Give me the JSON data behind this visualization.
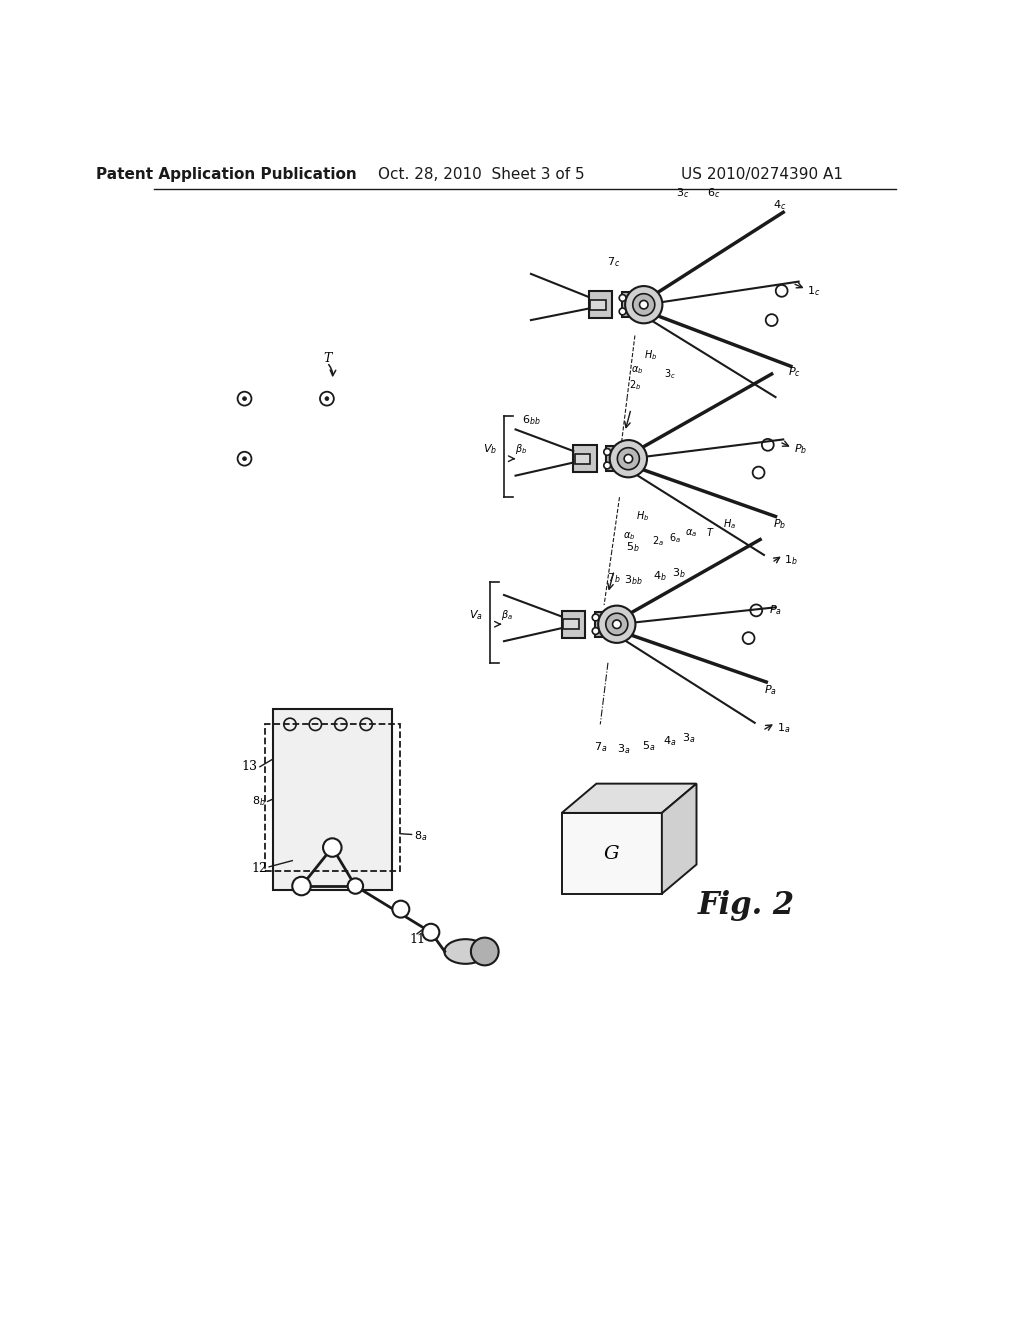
{
  "header_left": "Patent Application Publication",
  "header_mid": "Oct. 28, 2010  Sheet 3 of 5",
  "header_right": "US 2010/0274390 A1",
  "fig_label": "Fig. 2",
  "background_color": "#ffffff",
  "text_color": "#000000",
  "line_color": "#1a1a1a",
  "header_fontsize": 11,
  "fig_label_fontsize": 22,
  "label_fontsize": 8.0
}
